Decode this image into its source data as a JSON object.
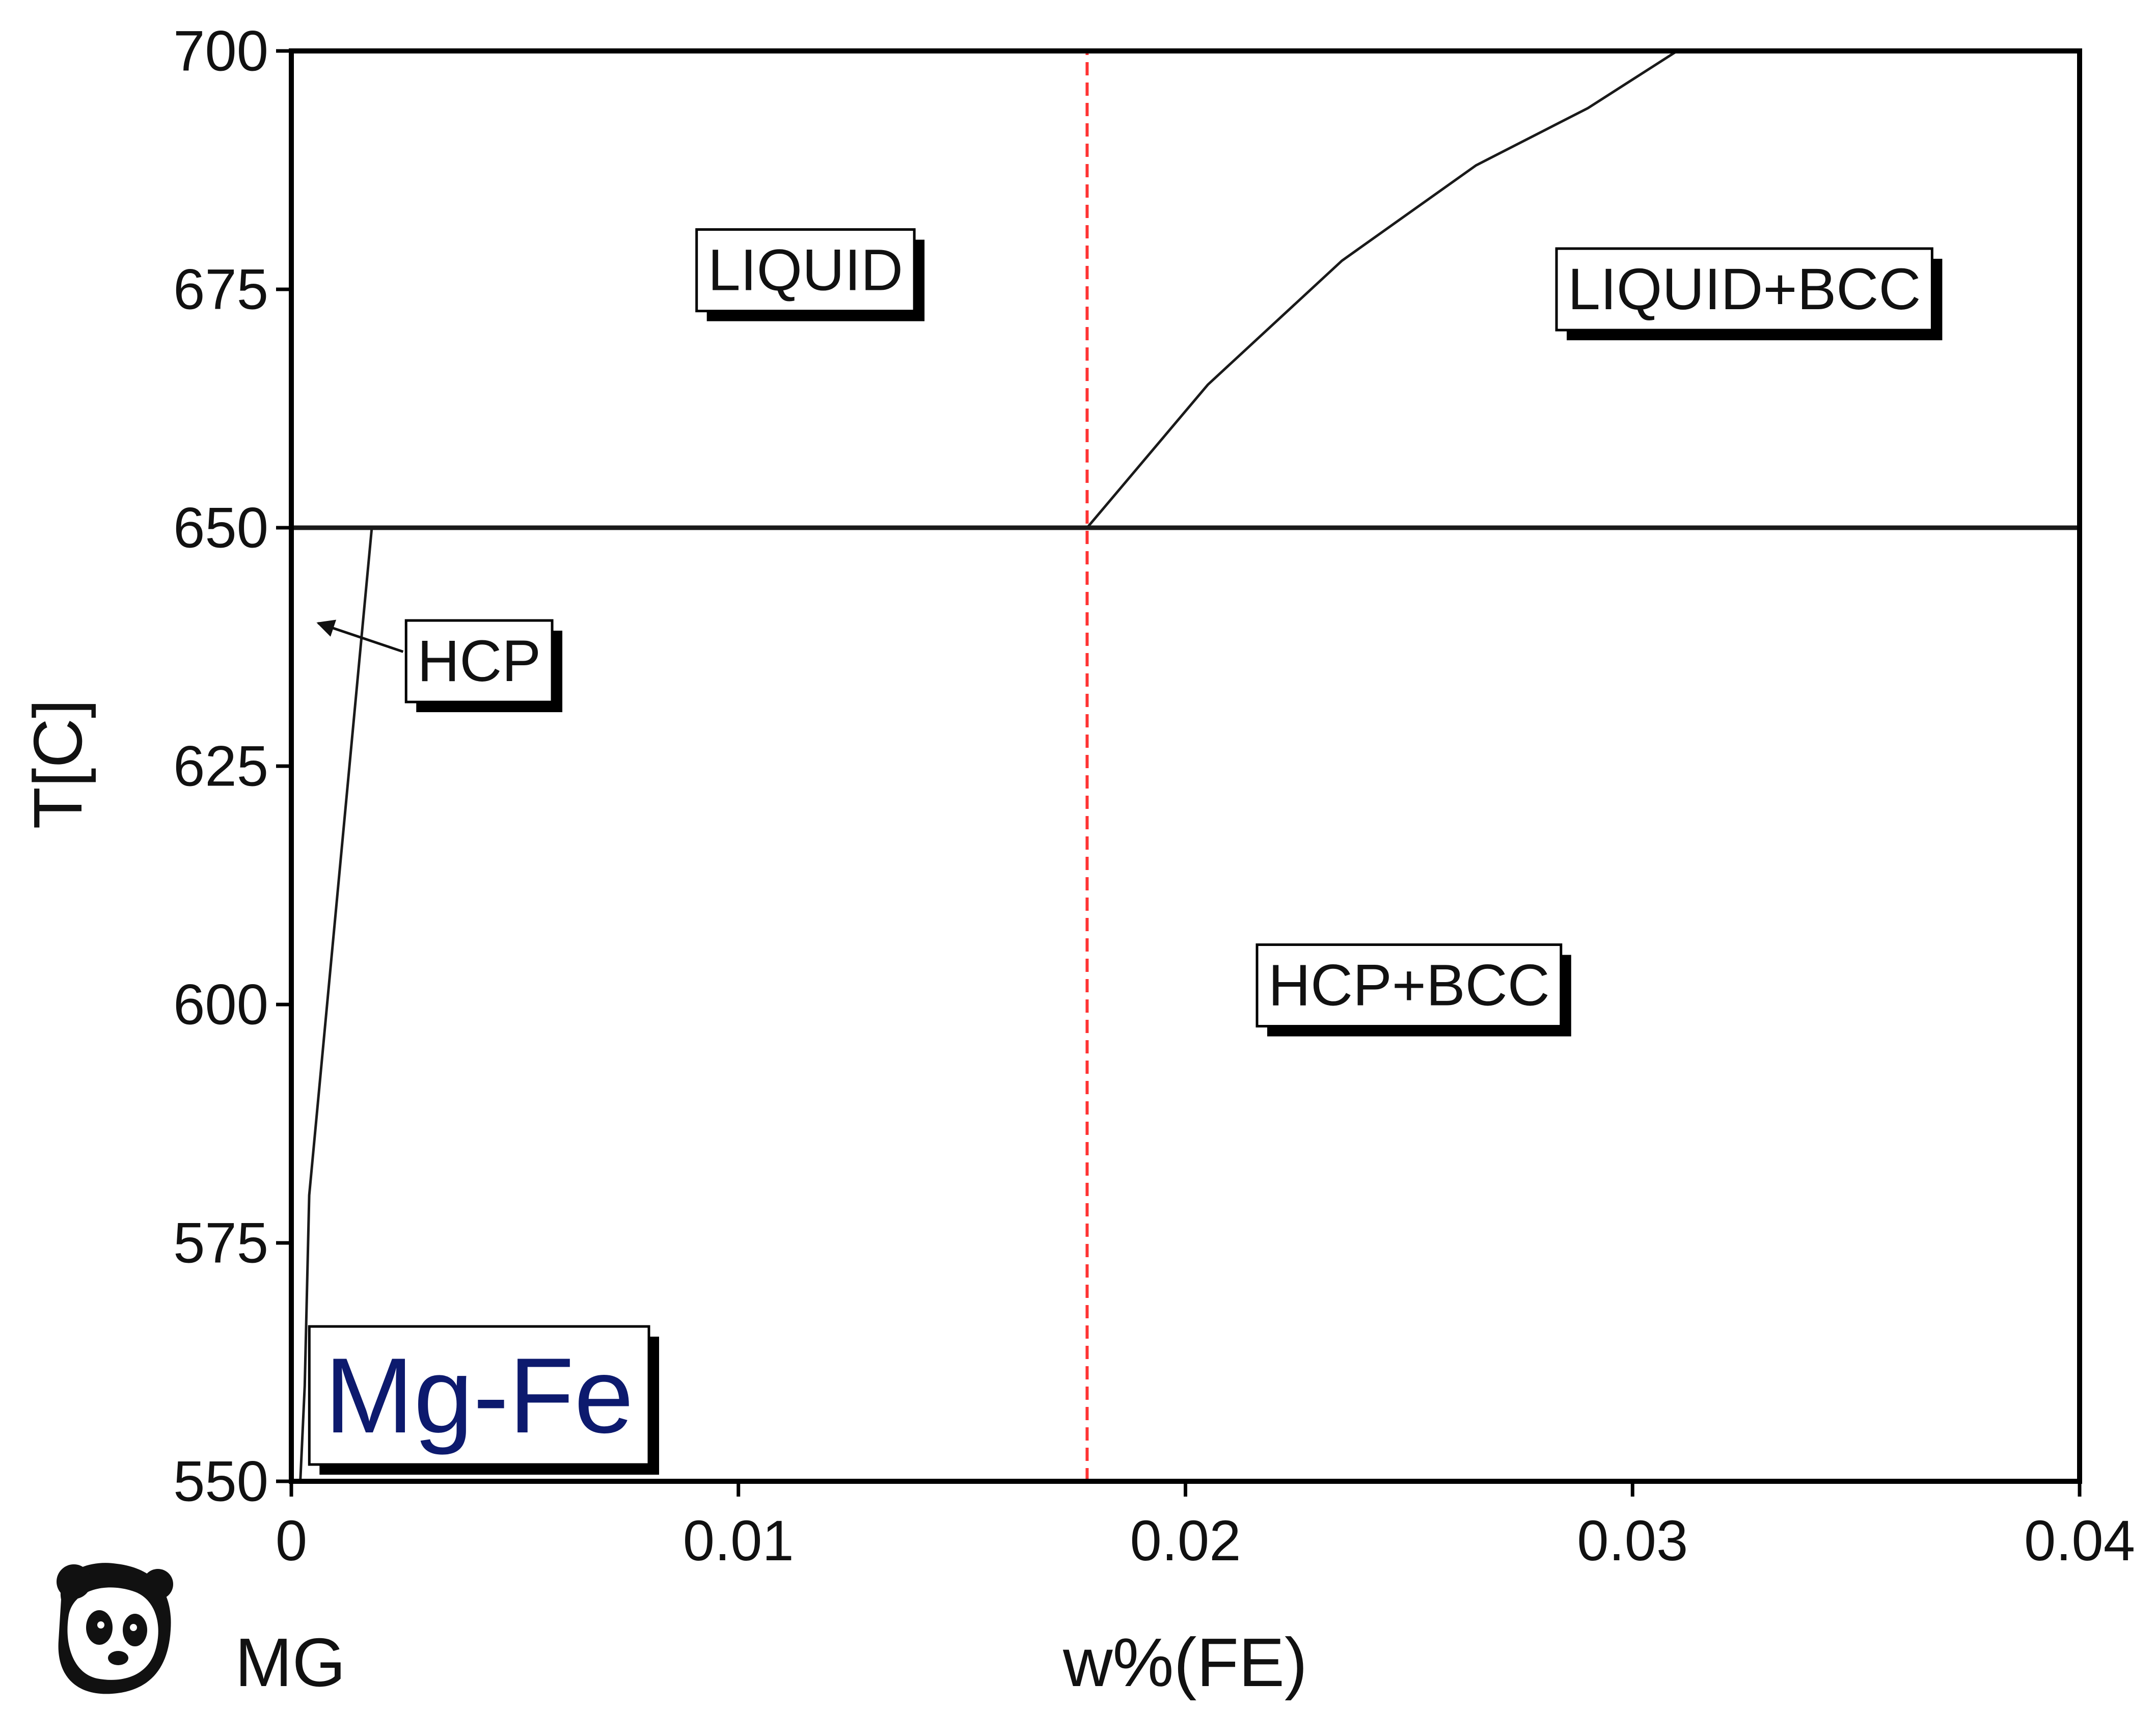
{
  "chart_data": {
    "type": "line",
    "title": "",
    "xlabel": "w%(FE)",
    "ylabel": "T[C]",
    "xlim": [
      0,
      0.04
    ],
    "ylim": [
      550,
      700
    ],
    "x_ticks": [
      "0",
      "0.01",
      "0.02",
      "0.03",
      "0.04"
    ],
    "y_ticks": [
      "550",
      "575",
      "600",
      "625",
      "650",
      "675",
      "700"
    ],
    "grid": false,
    "series": [
      {
        "color": "#1a1a1a",
        "points": [
          [
            0,
            650
          ],
          [
            0.04,
            650
          ]
        ]
      },
      {
        "color": "#1a1a1a",
        "points": [
          [
            0.0018,
            650
          ],
          [
            0.0016,
            640
          ],
          [
            0.0012,
            620
          ],
          [
            0.0008,
            600
          ],
          [
            0.0004,
            580
          ],
          [
            0.0003,
            560
          ],
          [
            0.0002,
            550
          ]
        ]
      },
      {
        "color": "#1a1a1a",
        "points": [
          [
            0.0178,
            650
          ],
          [
            0.0205,
            665
          ],
          [
            0.0235,
            678
          ],
          [
            0.0265,
            688
          ],
          [
            0.029,
            694
          ],
          [
            0.031,
            700
          ]
        ]
      },
      {
        "color": "#ff3333",
        "dashed": true,
        "points": [
          [
            0.0178,
            550
          ],
          [
            0.0178,
            700
          ]
        ]
      }
    ],
    "annotations": [
      {
        "text": "LIQUID",
        "x": 0.0115,
        "y": 677
      },
      {
        "text": "LIQUID+BCC",
        "x": 0.0325,
        "y": 675
      },
      {
        "text": "HCP",
        "x": 0.0042,
        "y": 636
      },
      {
        "text": "HCP+BCC",
        "x": 0.025,
        "y": 602
      },
      {
        "text": "Mg-Fe",
        "x": 0.0042,
        "y": 559
      }
    ],
    "hcp_arrow": {
      "from": [
        0.0025,
        637
      ],
      "to": [
        0.0006,
        640
      ]
    },
    "element_label": "MG",
    "colors": {
      "axis": "#000000",
      "text": "#111111",
      "title": "#0d1a6e",
      "dashed": "#ff3333"
    }
  },
  "logo": {
    "icon": "panda-icon"
  }
}
